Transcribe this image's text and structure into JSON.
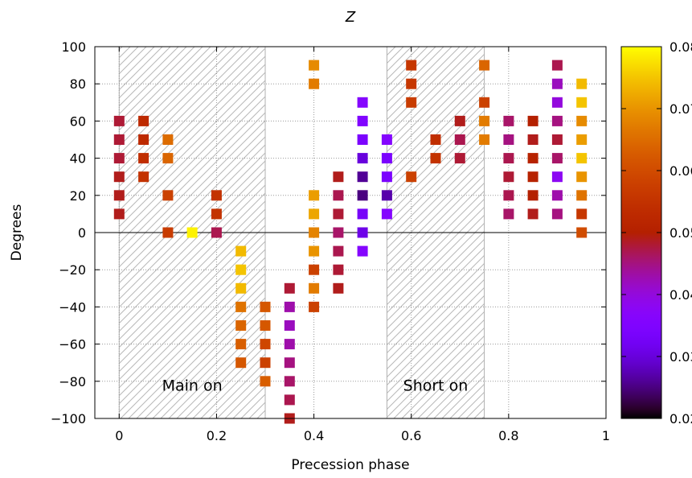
{
  "chart_data": {
    "type": "heatmap",
    "title": "Z",
    "xlabel": "Precession phase",
    "ylabel": "Degrees",
    "xlim": [
      -0.05,
      1.0
    ],
    "ylim": [
      -100,
      100
    ],
    "xticks": [
      0,
      0.2,
      0.4,
      0.6,
      0.8,
      1
    ],
    "xtick_labels": [
      "0",
      "0.2",
      "0.4",
      "0.6",
      "0.8",
      "1"
    ],
    "yticks": [
      100,
      80,
      60,
      40,
      20,
      0,
      -20,
      -40,
      -60,
      -80,
      -100
    ],
    "ytick_labels": [
      "100",
      "80",
      "60",
      "40",
      "20",
      "0",
      "−20",
      "−40",
      "−60",
      "−80",
      "−100"
    ],
    "grid": true,
    "zero_line": true,
    "colorbar": {
      "colormap": "gnuplot-pm3d",
      "range": [
        0.02,
        0.08
      ],
      "ticks": [
        0.08,
        0.07,
        0.06,
        0.05,
        0.04,
        0.03,
        0.02
      ],
      "tick_labels": [
        "0.08",
        "0.07",
        "0.06",
        "0.05",
        "0.04",
        "0.03",
        "0.02"
      ]
    },
    "hatched_regions": [
      {
        "x0": 0,
        "x1": 0.3,
        "label": "Main on"
      },
      {
        "x0": 0.55,
        "x1": 0.75,
        "label": "Short on"
      }
    ],
    "points": [
      [
        0,
        60,
        0.048
      ],
      [
        0,
        50,
        0.048
      ],
      [
        0,
        40,
        0.048
      ],
      [
        0,
        30,
        0.049
      ],
      [
        0,
        20,
        0.049
      ],
      [
        0,
        10,
        0.049
      ],
      [
        0.05,
        60,
        0.053
      ],
      [
        0.05,
        50,
        0.053
      ],
      [
        0.05,
        40,
        0.054
      ],
      [
        0.05,
        30,
        0.055
      ],
      [
        0.1,
        50,
        0.065
      ],
      [
        0.1,
        40,
        0.064
      ],
      [
        0.1,
        20,
        0.058
      ],
      [
        0.1,
        0,
        0.057
      ],
      [
        0.15,
        0,
        0.079
      ],
      [
        0.2,
        20,
        0.055
      ],
      [
        0.2,
        10,
        0.055
      ],
      [
        0.2,
        0,
        0.047
      ],
      [
        0.25,
        -10,
        0.074
      ],
      [
        0.25,
        -20,
        0.075
      ],
      [
        0.25,
        -30,
        0.074
      ],
      [
        0.25,
        -40,
        0.066
      ],
      [
        0.25,
        -50,
        0.064
      ],
      [
        0.25,
        -60,
        0.063
      ],
      [
        0.25,
        -70,
        0.062
      ],
      [
        0.3,
        -40,
        0.062
      ],
      [
        0.3,
        -50,
        0.062
      ],
      [
        0.3,
        -60,
        0.059
      ],
      [
        0.3,
        -70,
        0.058
      ],
      [
        0.3,
        -80,
        0.063
      ],
      [
        0.35,
        -30,
        0.048
      ],
      [
        0.35,
        -40,
        0.043
      ],
      [
        0.35,
        -50,
        0.042
      ],
      [
        0.35,
        -60,
        0.043
      ],
      [
        0.35,
        -70,
        0.045
      ],
      [
        0.35,
        -80,
        0.046
      ],
      [
        0.35,
        -90,
        0.047
      ],
      [
        0.35,
        -100,
        0.049
      ],
      [
        0.4,
        90,
        0.069
      ],
      [
        0.4,
        80,
        0.067
      ],
      [
        0.4,
        20,
        0.071
      ],
      [
        0.4,
        10,
        0.072
      ],
      [
        0.4,
        0,
        0.068
      ],
      [
        0.4,
        -10,
        0.07
      ],
      [
        0.4,
        -20,
        0.058
      ],
      [
        0.4,
        -30,
        0.067
      ],
      [
        0.4,
        -40,
        0.058
      ],
      [
        0.45,
        30,
        0.049
      ],
      [
        0.45,
        20,
        0.047
      ],
      [
        0.45,
        10,
        0.048
      ],
      [
        0.45,
        0,
        0.046
      ],
      [
        0.45,
        -10,
        0.047
      ],
      [
        0.45,
        -20,
        0.048
      ],
      [
        0.45,
        -30,
        0.049
      ],
      [
        0.5,
        70,
        0.036
      ],
      [
        0.5,
        60,
        0.035
      ],
      [
        0.5,
        50,
        0.034
      ],
      [
        0.5,
        40,
        0.03
      ],
      [
        0.5,
        30,
        0.026
      ],
      [
        0.5,
        20,
        0.025
      ],
      [
        0.5,
        10,
        0.033
      ],
      [
        0.5,
        0,
        0.031
      ],
      [
        0.5,
        -10,
        0.036
      ],
      [
        0.55,
        50,
        0.036
      ],
      [
        0.55,
        40,
        0.034
      ],
      [
        0.55,
        30,
        0.034
      ],
      [
        0.55,
        20,
        0.027
      ],
      [
        0.55,
        10,
        0.036
      ],
      [
        0.6,
        90,
        0.056
      ],
      [
        0.6,
        80,
        0.056
      ],
      [
        0.6,
        70,
        0.057
      ],
      [
        0.6,
        30,
        0.058
      ],
      [
        0.65,
        50,
        0.054
      ],
      [
        0.65,
        40,
        0.055
      ],
      [
        0.7,
        60,
        0.049
      ],
      [
        0.7,
        50,
        0.047
      ],
      [
        0.7,
        40,
        0.048
      ],
      [
        0.75,
        90,
        0.064
      ],
      [
        0.75,
        70,
        0.058
      ],
      [
        0.75,
        60,
        0.067
      ],
      [
        0.75,
        50,
        0.067
      ],
      [
        0.8,
        60,
        0.046
      ],
      [
        0.8,
        50,
        0.045
      ],
      [
        0.8,
        40,
        0.047
      ],
      [
        0.8,
        30,
        0.048
      ],
      [
        0.8,
        20,
        0.047
      ],
      [
        0.8,
        10,
        0.046
      ],
      [
        0.85,
        60,
        0.05
      ],
      [
        0.85,
        50,
        0.049
      ],
      [
        0.85,
        40,
        0.051
      ],
      [
        0.85,
        30,
        0.051
      ],
      [
        0.85,
        20,
        0.05
      ],
      [
        0.85,
        10,
        0.049
      ],
      [
        0.9,
        90,
        0.047
      ],
      [
        0.9,
        80,
        0.042
      ],
      [
        0.9,
        70,
        0.04
      ],
      [
        0.9,
        60,
        0.045
      ],
      [
        0.9,
        50,
        0.048
      ],
      [
        0.9,
        40,
        0.046
      ],
      [
        0.9,
        30,
        0.038
      ],
      [
        0.9,
        20,
        0.043
      ],
      [
        0.9,
        10,
        0.045
      ],
      [
        0.95,
        80,
        0.074
      ],
      [
        0.95,
        70,
        0.075
      ],
      [
        0.95,
        60,
        0.069
      ],
      [
        0.95,
        50,
        0.071
      ],
      [
        0.95,
        40,
        0.075
      ],
      [
        0.95,
        30,
        0.07
      ],
      [
        0.95,
        20,
        0.066
      ],
      [
        0.95,
        10,
        0.056
      ],
      [
        0.95,
        0,
        0.06
      ]
    ]
  }
}
